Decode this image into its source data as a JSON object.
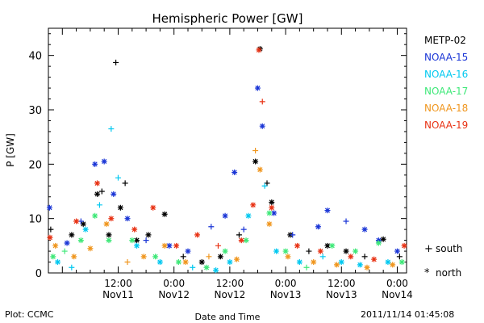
{
  "chart_data": {
    "type": "scatter",
    "title": "Hemispheric Power [GW]",
    "ylabel": "P [GW]",
    "xlabel": "Date and Time",
    "ylim": [
      0,
      45
    ],
    "yticks": [
      0,
      10,
      20,
      30,
      40
    ],
    "xlim": [
      "2011-11-10 21:00",
      "2011-11-14 02:00"
    ],
    "xticks": [
      {
        "t": "2011-11-11 12:00",
        "time": "12:00",
        "date": "Nov11"
      },
      {
        "t": "2011-11-12 00:00",
        "time": "0:00",
        "date": "Nov12"
      },
      {
        "t": "2011-11-12 12:00",
        "time": "12:00",
        "date": "Nov12"
      },
      {
        "t": "2011-11-13 00:00",
        "time": "0:00",
        "date": "Nov13"
      },
      {
        "t": "2011-11-13 12:00",
        "time": "12:00",
        "date": "Nov13"
      },
      {
        "t": "2011-11-14 00:00",
        "time": "0:00",
        "date": "Nov14"
      }
    ],
    "marker_legend": [
      {
        "glyph": "+",
        "label": "south"
      },
      {
        "glyph": "*",
        "label": "north"
      }
    ],
    "series": [
      {
        "name": "METP-02",
        "color": "#000000",
        "points": [
          {
            "t": "2011-11-10 21:30",
            "v": 8,
            "m": "+"
          },
          {
            "t": "2011-11-11 02:00",
            "v": 7,
            "m": "*"
          },
          {
            "t": "2011-11-11 04:30",
            "v": 9,
            "m": "*"
          },
          {
            "t": "2011-11-11 07:30",
            "v": 14.5,
            "m": "*"
          },
          {
            "t": "2011-11-11 08:30",
            "v": 15,
            "m": "+"
          },
          {
            "t": "2011-11-11 10:00",
            "v": 7,
            "m": "*"
          },
          {
            "t": "2011-11-11 11:30",
            "v": 38.7,
            "m": "+"
          },
          {
            "t": "2011-11-11 12:30",
            "v": 12,
            "m": "*"
          },
          {
            "t": "2011-11-11 13:30",
            "v": 16.5,
            "m": "+"
          },
          {
            "t": "2011-11-11 16:00",
            "v": 6,
            "m": "*"
          },
          {
            "t": "2011-11-11 18:30",
            "v": 7,
            "m": "*"
          },
          {
            "t": "2011-11-11 22:00",
            "v": 10.8,
            "m": "*"
          },
          {
            "t": "2011-11-12 02:00",
            "v": 3,
            "m": "+"
          },
          {
            "t": "2011-11-12 06:00",
            "v": 2,
            "m": "*"
          },
          {
            "t": "2011-11-12 10:00",
            "v": 3,
            "m": "*"
          },
          {
            "t": "2011-11-12 14:00",
            "v": 7,
            "m": "+"
          },
          {
            "t": "2011-11-12 17:30",
            "v": 20.5,
            "m": "*"
          },
          {
            "t": "2011-11-12 18:30",
            "v": 41.2,
            "m": "*"
          },
          {
            "t": "2011-11-12 20:00",
            "v": 16.5,
            "m": "+"
          },
          {
            "t": "2011-11-12 21:00",
            "v": 13,
            "m": "*"
          },
          {
            "t": "2011-11-13 01:00",
            "v": 7,
            "m": "*"
          },
          {
            "t": "2011-11-13 05:00",
            "v": 4,
            "m": "+"
          },
          {
            "t": "2011-11-13 09:00",
            "v": 5,
            "m": "*"
          },
          {
            "t": "2011-11-13 13:00",
            "v": 4,
            "m": "*"
          },
          {
            "t": "2011-11-13 17:00",
            "v": 3,
            "m": "+"
          },
          {
            "t": "2011-11-13 21:00",
            "v": 6.2,
            "m": "*"
          },
          {
            "t": "2011-11-14 00:30",
            "v": 3,
            "m": "+"
          }
        ]
      },
      {
        "name": "NOAA-15",
        "color": "#1a35d6",
        "points": [
          {
            "t": "2011-11-10 21:15",
            "v": 12,
            "m": "*"
          },
          {
            "t": "2011-11-11 01:00",
            "v": 5.5,
            "m": "*"
          },
          {
            "t": "2011-11-11 04:00",
            "v": 9.5,
            "m": "+"
          },
          {
            "t": "2011-11-11 07:00",
            "v": 20,
            "m": "*"
          },
          {
            "t": "2011-11-11 09:00",
            "v": 20.5,
            "m": "*"
          },
          {
            "t": "2011-11-11 11:00",
            "v": 14.5,
            "m": "*"
          },
          {
            "t": "2011-11-11 14:00",
            "v": 10,
            "m": "*"
          },
          {
            "t": "2011-11-11 18:00",
            "v": 6,
            "m": "+"
          },
          {
            "t": "2011-11-11 23:00",
            "v": 5,
            "m": "*"
          },
          {
            "t": "2011-11-12 03:00",
            "v": 4,
            "m": "*"
          },
          {
            "t": "2011-11-12 08:00",
            "v": 8.5,
            "m": "+"
          },
          {
            "t": "2011-11-12 11:00",
            "v": 10.5,
            "m": "*"
          },
          {
            "t": "2011-11-12 13:00",
            "v": 18.5,
            "m": "*"
          },
          {
            "t": "2011-11-12 15:00",
            "v": 8,
            "m": "+"
          },
          {
            "t": "2011-11-12 18:00",
            "v": 34,
            "m": "*"
          },
          {
            "t": "2011-11-12 19:00",
            "v": 27,
            "m": "*"
          },
          {
            "t": "2011-11-12 21:30",
            "v": 11,
            "m": "*"
          },
          {
            "t": "2011-11-13 01:30",
            "v": 7,
            "m": "+"
          },
          {
            "t": "2011-11-13 07:00",
            "v": 8.5,
            "m": "*"
          },
          {
            "t": "2011-11-13 09:00",
            "v": 11.5,
            "m": "*"
          },
          {
            "t": "2011-11-13 13:00",
            "v": 9.5,
            "m": "+"
          },
          {
            "t": "2011-11-13 17:00",
            "v": 8,
            "m": "*"
          },
          {
            "t": "2011-11-13 20:00",
            "v": 6,
            "m": "*"
          },
          {
            "t": "2011-11-14 00:00",
            "v": 4,
            "m": "*"
          }
        ]
      },
      {
        "name": "NOAA-16",
        "color": "#00c8f0",
        "points": [
          {
            "t": "2011-11-10 23:00",
            "v": 2,
            "m": "*"
          },
          {
            "t": "2011-11-11 02:00",
            "v": 1,
            "m": "+"
          },
          {
            "t": "2011-11-11 05:00",
            "v": 8,
            "m": "*"
          },
          {
            "t": "2011-11-11 08:00",
            "v": 12.5,
            "m": "+"
          },
          {
            "t": "2011-11-11 10:30",
            "v": 26.5,
            "m": "+"
          },
          {
            "t": "2011-11-11 12:00",
            "v": 17.5,
            "m": "+"
          },
          {
            "t": "2011-11-11 16:00",
            "v": 5,
            "m": "*"
          },
          {
            "t": "2011-11-11 21:00",
            "v": 2,
            "m": "*"
          },
          {
            "t": "2011-11-12 04:00",
            "v": 1,
            "m": "+"
          },
          {
            "t": "2011-11-12 09:00",
            "v": 0.5,
            "m": "*"
          },
          {
            "t": "2011-11-12 12:00",
            "v": 2,
            "m": "*"
          },
          {
            "t": "2011-11-12 16:00",
            "v": 10.5,
            "m": "*"
          },
          {
            "t": "2011-11-12 19:30",
            "v": 16,
            "m": "+"
          },
          {
            "t": "2011-11-12 22:00",
            "v": 4,
            "m": "*"
          },
          {
            "t": "2011-11-13 03:00",
            "v": 2,
            "m": "*"
          },
          {
            "t": "2011-11-13 08:00",
            "v": 3,
            "m": "+"
          },
          {
            "t": "2011-11-13 12:00",
            "v": 2,
            "m": "*"
          },
          {
            "t": "2011-11-13 16:00",
            "v": 1.5,
            "m": "*"
          },
          {
            "t": "2011-11-13 22:00",
            "v": 2,
            "m": "*"
          }
        ]
      },
      {
        "name": "NOAA-17",
        "color": "#3ee878",
        "points": [
          {
            "t": "2011-11-10 22:00",
            "v": 3,
            "m": "*"
          },
          {
            "t": "2011-11-11 00:30",
            "v": 4,
            "m": "+"
          },
          {
            "t": "2011-11-11 04:00",
            "v": 6,
            "m": "*"
          },
          {
            "t": "2011-11-11 07:00",
            "v": 10.5,
            "m": "*"
          },
          {
            "t": "2011-11-11 10:00",
            "v": 6,
            "m": "*"
          },
          {
            "t": "2011-11-11 15:00",
            "v": 6,
            "m": "*"
          },
          {
            "t": "2011-11-11 20:00",
            "v": 3,
            "m": "*"
          },
          {
            "t": "2011-11-12 01:00",
            "v": 2,
            "m": "*"
          },
          {
            "t": "2011-11-12 07:00",
            "v": 1,
            "m": "*"
          },
          {
            "t": "2011-11-12 11:00",
            "v": 4,
            "m": "*"
          },
          {
            "t": "2011-11-12 15:30",
            "v": 6,
            "m": "*"
          },
          {
            "t": "2011-11-12 20:30",
            "v": 11,
            "m": "*"
          },
          {
            "t": "2011-11-13 00:00",
            "v": 4,
            "m": "*"
          },
          {
            "t": "2011-11-13 04:30",
            "v": 1,
            "m": "+"
          },
          {
            "t": "2011-11-13 10:00",
            "v": 5,
            "m": "*"
          },
          {
            "t": "2011-11-13 15:00",
            "v": 4,
            "m": "*"
          },
          {
            "t": "2011-11-13 20:00",
            "v": 5.5,
            "m": "*"
          },
          {
            "t": "2011-11-14 01:00",
            "v": 2,
            "m": "*"
          }
        ]
      },
      {
        "name": "NOAA-18",
        "color": "#f0961e",
        "points": [
          {
            "t": "2011-11-10 22:30",
            "v": 5,
            "m": "*"
          },
          {
            "t": "2011-11-11 02:30",
            "v": 3,
            "m": "*"
          },
          {
            "t": "2011-11-11 06:00",
            "v": 4.5,
            "m": "*"
          },
          {
            "t": "2011-11-11 09:30",
            "v": 9,
            "m": "*"
          },
          {
            "t": "2011-11-11 14:00",
            "v": 2,
            "m": "+"
          },
          {
            "t": "2011-11-11 17:30",
            "v": 3,
            "m": "*"
          },
          {
            "t": "2011-11-11 22:00",
            "v": 5,
            "m": "*"
          },
          {
            "t": "2011-11-12 02:30",
            "v": 2,
            "m": "*"
          },
          {
            "t": "2011-11-12 07:30",
            "v": 3,
            "m": "+"
          },
          {
            "t": "2011-11-12 13:30",
            "v": 2.5,
            "m": "*"
          },
          {
            "t": "2011-11-12 17:30",
            "v": 22.5,
            "m": "+"
          },
          {
            "t": "2011-11-12 18:30",
            "v": 19,
            "m": "*"
          },
          {
            "t": "2011-11-12 20:30",
            "v": 9,
            "m": "*"
          },
          {
            "t": "2011-11-13 00:30",
            "v": 3,
            "m": "*"
          },
          {
            "t": "2011-11-13 06:00",
            "v": 2,
            "m": "*"
          },
          {
            "t": "2011-11-13 11:00",
            "v": 1.5,
            "m": "*"
          },
          {
            "t": "2011-11-13 17:30",
            "v": 1,
            "m": "*"
          },
          {
            "t": "2011-11-13 23:00",
            "v": 1.5,
            "m": "*"
          }
        ]
      },
      {
        "name": "NOAA-19",
        "color": "#e83214",
        "points": [
          {
            "t": "2011-11-10 21:20",
            "v": 6.5,
            "m": "*"
          },
          {
            "t": "2011-11-11 03:00",
            "v": 9.5,
            "m": "*"
          },
          {
            "t": "2011-11-11 07:30",
            "v": 16.5,
            "m": "*"
          },
          {
            "t": "2011-11-11 10:30",
            "v": 10,
            "m": "*"
          },
          {
            "t": "2011-11-11 15:30",
            "v": 8,
            "m": "*"
          },
          {
            "t": "2011-11-11 19:30",
            "v": 12,
            "m": "*"
          },
          {
            "t": "2011-11-12 00:30",
            "v": 5,
            "m": "*"
          },
          {
            "t": "2011-11-12 05:00",
            "v": 7,
            "m": "*"
          },
          {
            "t": "2011-11-12 09:30",
            "v": 5,
            "m": "+"
          },
          {
            "t": "2011-11-12 14:30",
            "v": 6,
            "m": "*"
          },
          {
            "t": "2011-11-12 17:00",
            "v": 12.5,
            "m": "*"
          },
          {
            "t": "2011-11-12 18:15",
            "v": 41,
            "m": "*"
          },
          {
            "t": "2011-11-12 19:00",
            "v": 31.5,
            "m": "+"
          },
          {
            "t": "2011-11-12 21:00",
            "v": 12,
            "m": "*"
          },
          {
            "t": "2011-11-13 02:30",
            "v": 5,
            "m": "*"
          },
          {
            "t": "2011-11-13 07:30",
            "v": 4,
            "m": "*"
          },
          {
            "t": "2011-11-13 14:00",
            "v": 3,
            "m": "*"
          },
          {
            "t": "2011-11-13 19:00",
            "v": 2.5,
            "m": "*"
          },
          {
            "t": "2011-11-14 01:30",
            "v": 5,
            "m": "*"
          }
        ]
      }
    ]
  },
  "footer": {
    "credit": "Plot: CCMC",
    "timestamp": "2011/11/14 01:45:08"
  }
}
